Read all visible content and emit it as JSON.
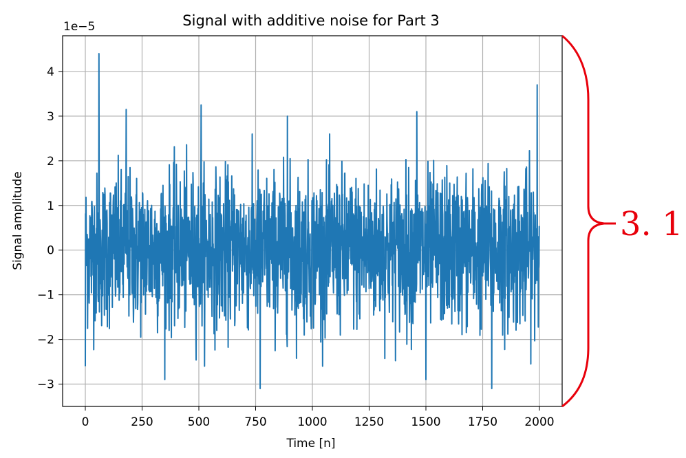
{
  "chart_data": {
    "type": "line",
    "title": "Signal with additive noise for Part 3",
    "xlabel": "Time [n]",
    "ylabel": "Signal amplitude",
    "offset_label": "1e−5",
    "xlim": [
      -100,
      2100
    ],
    "ylim": [
      -3.5,
      4.8
    ],
    "xticks": [
      0,
      250,
      500,
      750,
      1000,
      1250,
      1500,
      1750,
      2000
    ],
    "xtick_labels": [
      "0",
      "250",
      "500",
      "750",
      "1000",
      "1250",
      "1500",
      "1750",
      "2000"
    ],
    "yticks": [
      -3,
      -2,
      -1,
      0,
      1,
      2,
      3,
      4
    ],
    "ytick_labels": [
      "−3",
      "−2",
      "−1",
      "0",
      "1",
      "2",
      "3",
      "4"
    ],
    "grid": true,
    "series": [
      {
        "color": "#1f77b4",
        "n_samples": 2000,
        "y_scale": "1e-5",
        "noted_extremes": [
          {
            "x": 60,
            "y": 4.4
          },
          {
            "x": 180,
            "y": 3.15
          },
          {
            "x": 510,
            "y": 3.25
          },
          {
            "x": 890,
            "y": 3.0
          },
          {
            "x": 1460,
            "y": 3.1
          },
          {
            "x": 1990,
            "y": 3.7
          },
          {
            "x": 0,
            "y": -2.6
          },
          {
            "x": 350,
            "y": -2.9
          },
          {
            "x": 770,
            "y": -3.1
          },
          {
            "x": 1500,
            "y": -2.9
          },
          {
            "x": 1790,
            "y": -3.1
          }
        ],
        "typical_range": [
          -1.5,
          1.5
        ]
      }
    ]
  },
  "annotation": {
    "label": "3. 1",
    "color": "#e8000b"
  }
}
